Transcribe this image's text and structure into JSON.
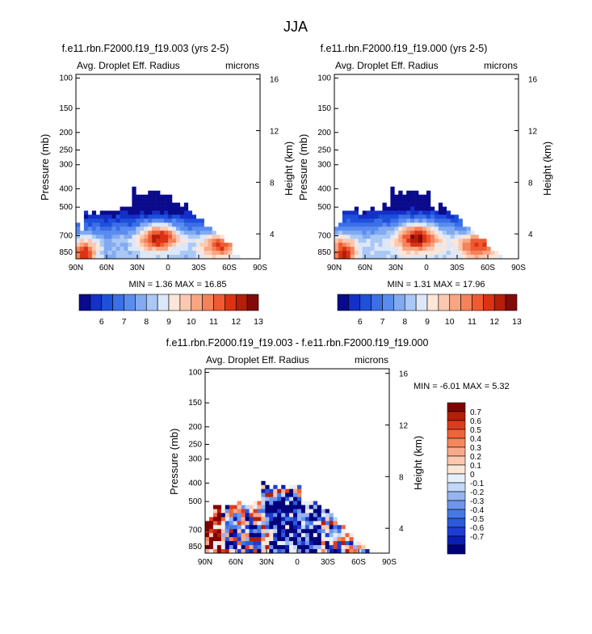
{
  "chart_data": {
    "type": "contour",
    "title": "JJA",
    "colors": {
      "left_colormap": [
        "#0a0a8c",
        "#1430c8",
        "#1e50dc",
        "#3c6ee6",
        "#5a8cf0",
        "#82aaf0",
        "#aac8f5",
        "#dce8fa",
        "#fde6d8",
        "#fcc8b0",
        "#f8a682",
        "#f4825a",
        "#f05a32",
        "#dc3214",
        "#b41e0a",
        "#820a0a"
      ],
      "diff_colormap": [
        "#00007a",
        "#0a1eb4",
        "#1e3cd2",
        "#2d5adc",
        "#4678e6",
        "#6e96ec",
        "#96b4f0",
        "#c3d7f8",
        "#e6f0fc",
        "#fde6d8",
        "#fcc8b0",
        "#f9aa8c",
        "#f5875f",
        "#f0643c",
        "#dc3c1e",
        "#b41e0a",
        "#820000"
      ]
    },
    "panels": [
      {
        "name": "panel-a",
        "title": "f.e11.rbn.F2000.f19_f19.003 (yrs 2-5)",
        "left_label": "Avg. Droplet Eff. Radius",
        "right_label": "microns",
        "ylabel": "Pressure (mb)",
        "ylabel_right": "Height (km)",
        "x_ticks": [
          "90N",
          "60N",
          "30N",
          "0",
          "30S",
          "60S",
          "90S"
        ],
        "y_ticks": [
          "100",
          "150",
          "200",
          "250",
          "300",
          "400",
          "500",
          "700",
          "850"
        ],
        "y_ticks_right": [
          "16",
          "12",
          "8",
          "4"
        ],
        "min_max": "MIN =   1.36   MAX =  16.85",
        "colorbar_labels": [
          "6",
          "7",
          "8",
          "9",
          "10",
          "11",
          "12",
          "13"
        ],
        "seed": 3,
        "mean_shift": 0
      },
      {
        "name": "panel-b",
        "title": "f.e11.rbn.F2000.f19_f19.000 (yrs 2-5)",
        "left_label": "Avg. Droplet Eff. Radius",
        "right_label": "microns",
        "ylabel": "Pressure (mb)",
        "ylabel_right": "Height (km)",
        "x_ticks": [
          "90N",
          "60N",
          "30N",
          "0",
          "30S",
          "60S",
          "90S"
        ],
        "y_ticks": [
          "100",
          "150",
          "200",
          "250",
          "300",
          "400",
          "500",
          "700",
          "850"
        ],
        "y_ticks_right": [
          "16",
          "12",
          "8",
          "4"
        ],
        "min_max": "MIN =   1.31   MAX =  17.96",
        "colorbar_labels": [
          "6",
          "7",
          "8",
          "9",
          "10",
          "11",
          "12",
          "13"
        ],
        "seed": 7,
        "mean_shift": 0.35
      },
      {
        "name": "panel-diff",
        "title": "f.e11.rbn.F2000.f19_f19.003 - f.e11.rbn.F2000.f19_f19.000",
        "left_label": "Avg. Droplet Eff. Radius",
        "right_label": "microns",
        "ylabel": "Pressure (mb)",
        "ylabel_right": "Height (km)",
        "x_ticks": [
          "90N",
          "60N",
          "30N",
          "0",
          "30S",
          "60S",
          "90S"
        ],
        "y_ticks": [
          "100",
          "150",
          "200",
          "250",
          "300",
          "400",
          "500",
          "700",
          "850"
        ],
        "y_ticks_right": [
          "16",
          "12",
          "8",
          "4"
        ],
        "min_max": "MIN =  -6.01   MAX =   5.32",
        "colorbar_labels": [
          "0.7",
          "0.6",
          "0.5",
          "0.4",
          "0.3",
          "0.2",
          "0.1",
          "0",
          "-0.1",
          "-0.2",
          "-0.3",
          "-0.4",
          "-0.5",
          "-0.6",
          "-0.7"
        ],
        "seed": 11,
        "mean_shift": 0
      }
    ]
  }
}
